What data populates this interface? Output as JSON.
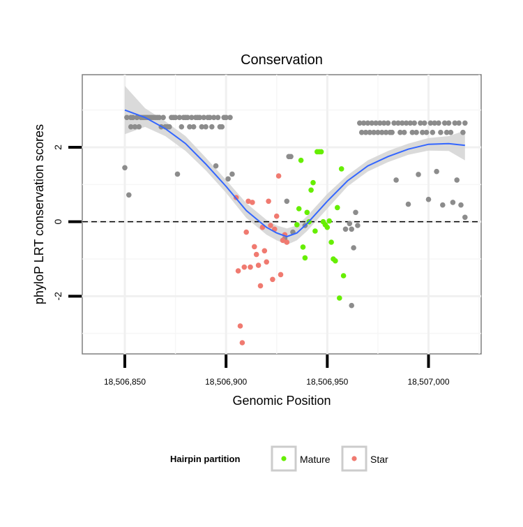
{
  "chart_data": {
    "type": "scatter",
    "title": "Conservation",
    "xlabel": "Genomic Position",
    "ylabel": "phyloP LRT conservation scores",
    "xlim": [
      18506829,
      18507026
    ],
    "ylim": [
      -3.55,
      3.95
    ],
    "x_ticks": [
      18506850,
      18506900,
      18506950,
      18507000
    ],
    "x_tick_labels": [
      "18,506,850",
      "18,506,900",
      "18,506,950",
      "18,507,000"
    ],
    "y_ticks": [
      -2,
      0,
      2
    ],
    "y_tick_labels": [
      "-2",
      "0",
      "2"
    ],
    "grid": true,
    "reference_line": {
      "y": 0,
      "style": "dashed"
    },
    "legend": {
      "title": "Hairpin partition",
      "position": "bottom",
      "entries": [
        {
          "label": "Mature",
          "color": "#66ee00"
        },
        {
          "label": "Star",
          "color": "#f07a70"
        }
      ]
    },
    "colors": {
      "other": "#8c8c8c",
      "mature": "#66ee00",
      "star": "#f07a70",
      "smooth": "#3366ff",
      "band": "#d3d3d3"
    },
    "series": [
      {
        "name": "Other",
        "points": [
          [
            18506850,
            1.45
          ],
          [
            18506851,
            2.8
          ],
          [
            18506852,
            0.72
          ],
          [
            18506853,
            2.8
          ],
          [
            18506853,
            2.55
          ],
          [
            18506854,
            2.8
          ],
          [
            18506855,
            2.55
          ],
          [
            18506856,
            2.8
          ],
          [
            18506857,
            2.55
          ],
          [
            18506858,
            2.8
          ],
          [
            18506859,
            2.8
          ],
          [
            18506860,
            2.8
          ],
          [
            18506861,
            2.8
          ],
          [
            18506862,
            2.8
          ],
          [
            18506863,
            2.8
          ],
          [
            18506864,
            2.8
          ],
          [
            18506865,
            2.8
          ],
          [
            18506866,
            2.8
          ],
          [
            18506867,
            2.8
          ],
          [
            18506868,
            2.55
          ],
          [
            18506869,
            2.8
          ],
          [
            18506870,
            2.55
          ],
          [
            18506871,
            2.55
          ],
          [
            18506872,
            2.55
          ],
          [
            18506873,
            2.8
          ],
          [
            18506874,
            2.8
          ],
          [
            18506875,
            2.8
          ],
          [
            18506876,
            1.28
          ],
          [
            18506877,
            2.8
          ],
          [
            18506878,
            2.55
          ],
          [
            18506879,
            2.8
          ],
          [
            18506880,
            2.8
          ],
          [
            18506881,
            2.8
          ],
          [
            18506882,
            2.55
          ],
          [
            18506883,
            2.8
          ],
          [
            18506884,
            2.55
          ],
          [
            18506885,
            2.8
          ],
          [
            18506886,
            2.8
          ],
          [
            18506887,
            2.8
          ],
          [
            18506888,
            2.55
          ],
          [
            18506889,
            2.8
          ],
          [
            18506890,
            2.55
          ],
          [
            18506891,
            2.8
          ],
          [
            18506892,
            2.8
          ],
          [
            18506893,
            2.55
          ],
          [
            18506894,
            2.8
          ],
          [
            18506895,
            1.5
          ],
          [
            18506896,
            2.8
          ],
          [
            18506897,
            2.55
          ],
          [
            18506898,
            2.55
          ],
          [
            18506899,
            2.8
          ],
          [
            18506900,
            2.8
          ],
          [
            18506901,
            1.15
          ],
          [
            18506902,
            2.8
          ],
          [
            18506903,
            1.28
          ],
          [
            18506931,
            1.75
          ],
          [
            18506932,
            1.75
          ],
          [
            18506930,
            0.55
          ],
          [
            18506929,
            -0.45
          ],
          [
            18506933,
            -0.28
          ],
          [
            18506939,
            -0.1
          ],
          [
            18506959,
            -0.2
          ],
          [
            18506961,
            -0.05
          ],
          [
            18506962,
            -0.2
          ],
          [
            18506962,
            -2.25
          ],
          [
            18506963,
            -0.7
          ],
          [
            18506964,
            0.25
          ],
          [
            18506965,
            -0.1
          ],
          [
            18506966,
            2.65
          ],
          [
            18506967,
            2.4
          ],
          [
            18506968,
            2.65
          ],
          [
            18506969,
            2.4
          ],
          [
            18506970,
            2.65
          ],
          [
            18506971,
            2.4
          ],
          [
            18506972,
            2.65
          ],
          [
            18506973,
            2.4
          ],
          [
            18506974,
            2.65
          ],
          [
            18506975,
            2.4
          ],
          [
            18506976,
            2.65
          ],
          [
            18506977,
            2.4
          ],
          [
            18506978,
            2.65
          ],
          [
            18506979,
            2.4
          ],
          [
            18506980,
            2.65
          ],
          [
            18506981,
            2.4
          ],
          [
            18506982,
            2.4
          ],
          [
            18506983,
            2.65
          ],
          [
            18506984,
            1.12
          ],
          [
            18506985,
            2.65
          ],
          [
            18506986,
            2.4
          ],
          [
            18506987,
            2.65
          ],
          [
            18506988,
            2.4
          ],
          [
            18506989,
            2.65
          ],
          [
            18506990,
            0.47
          ],
          [
            18506991,
            2.65
          ],
          [
            18506992,
            2.4
          ],
          [
            18506993,
            2.65
          ],
          [
            18506994,
            2.4
          ],
          [
            18506995,
            1.27
          ],
          [
            18506996,
            2.65
          ],
          [
            18506997,
            2.4
          ],
          [
            18506998,
            2.65
          ],
          [
            18506999,
            2.4
          ],
          [
            18507000,
            0.6
          ],
          [
            18507001,
            2.65
          ],
          [
            18507002,
            2.4
          ],
          [
            18507003,
            2.65
          ],
          [
            18507004,
            1.35
          ],
          [
            18507005,
            2.65
          ],
          [
            18507006,
            2.4
          ],
          [
            18507007,
            0.45
          ],
          [
            18507008,
            2.65
          ],
          [
            18507009,
            2.4
          ],
          [
            18507010,
            2.65
          ],
          [
            18507011,
            2.4
          ],
          [
            18507012,
            0.52
          ],
          [
            18507013,
            2.65
          ],
          [
            18507014,
            1.12
          ],
          [
            18507015,
            2.65
          ],
          [
            18507016,
            0.45
          ],
          [
            18507017,
            2.4
          ],
          [
            18507018,
            0.12
          ],
          [
            18507018,
            2.65
          ]
        ]
      },
      {
        "name": "Mature",
        "points": [
          [
            18506935,
            -0.08
          ],
          [
            18506936,
            0.35
          ],
          [
            18506937,
            1.65
          ],
          [
            18506938,
            -0.68
          ],
          [
            18506939,
            -0.97
          ],
          [
            18506940,
            0.25
          ],
          [
            18506941,
            0.0
          ],
          [
            18506942,
            0.85
          ],
          [
            18506943,
            1.05
          ],
          [
            18506944,
            -0.25
          ],
          [
            18506945,
            1.88
          ],
          [
            18506946,
            1.88
          ],
          [
            18506947,
            1.88
          ],
          [
            18506948,
            0.0
          ],
          [
            18506949,
            -0.08
          ],
          [
            18506950,
            -0.15
          ],
          [
            18506951,
            0.02
          ],
          [
            18506952,
            -0.55
          ],
          [
            18506953,
            -1.0
          ],
          [
            18506954,
            -1.05
          ],
          [
            18506955,
            0.38
          ],
          [
            18506956,
            -2.05
          ],
          [
            18506957,
            1.42
          ],
          [
            18506958,
            -1.45
          ]
        ]
      },
      {
        "name": "Star",
        "points": [
          [
            18506905,
            0.65
          ],
          [
            18506906,
            -1.32
          ],
          [
            18506907,
            -2.8
          ],
          [
            18506908,
            -3.25
          ],
          [
            18506909,
            -1.22
          ],
          [
            18506910,
            -0.28
          ],
          [
            18506911,
            0.55
          ],
          [
            18506912,
            -1.22
          ],
          [
            18506913,
            0.52
          ],
          [
            18506914,
            -0.67
          ],
          [
            18506915,
            -0.88
          ],
          [
            18506916,
            -1.17
          ],
          [
            18506917,
            -1.72
          ],
          [
            18506918,
            -0.15
          ],
          [
            18506919,
            -0.78
          ],
          [
            18506920,
            -1.08
          ],
          [
            18506921,
            0.55
          ],
          [
            18506922,
            -0.1
          ],
          [
            18506923,
            -1.55
          ],
          [
            18506924,
            -0.2
          ],
          [
            18506925,
            0.15
          ],
          [
            18506926,
            1.23
          ],
          [
            18506927,
            -1.42
          ],
          [
            18506928,
            -0.5
          ],
          [
            18506929,
            -0.35
          ],
          [
            18506930,
            -0.55
          ]
        ]
      }
    ],
    "smooth": {
      "x": [
        18506850,
        18506860,
        18506870,
        18506880,
        18506890,
        18506900,
        18506910,
        18506920,
        18506925,
        18506930,
        18506935,
        18506940,
        18506945,
        18506950,
        18506960,
        18506970,
        18506980,
        18506990,
        18507000,
        18507010,
        18507018
      ],
      "y": [
        3.0,
        2.8,
        2.5,
        2.1,
        1.55,
        0.95,
        0.3,
        -0.15,
        -0.3,
        -0.4,
        -0.3,
        -0.05,
        0.25,
        0.55,
        1.1,
        1.5,
        1.75,
        1.95,
        2.08,
        2.1,
        2.05
      ],
      "upper": [
        3.65,
        3.05,
        2.7,
        2.3,
        1.72,
        1.12,
        0.5,
        0.05,
        -0.1,
        -0.18,
        -0.1,
        0.15,
        0.45,
        0.75,
        1.25,
        1.65,
        1.9,
        2.1,
        2.25,
        2.3,
        2.45
      ],
      "lower": [
        2.35,
        2.55,
        2.3,
        1.9,
        1.38,
        0.78,
        0.1,
        -0.35,
        -0.5,
        -0.62,
        -0.5,
        -0.25,
        0.05,
        0.35,
        0.95,
        1.35,
        1.6,
        1.8,
        1.91,
        1.9,
        1.65
      ]
    }
  }
}
